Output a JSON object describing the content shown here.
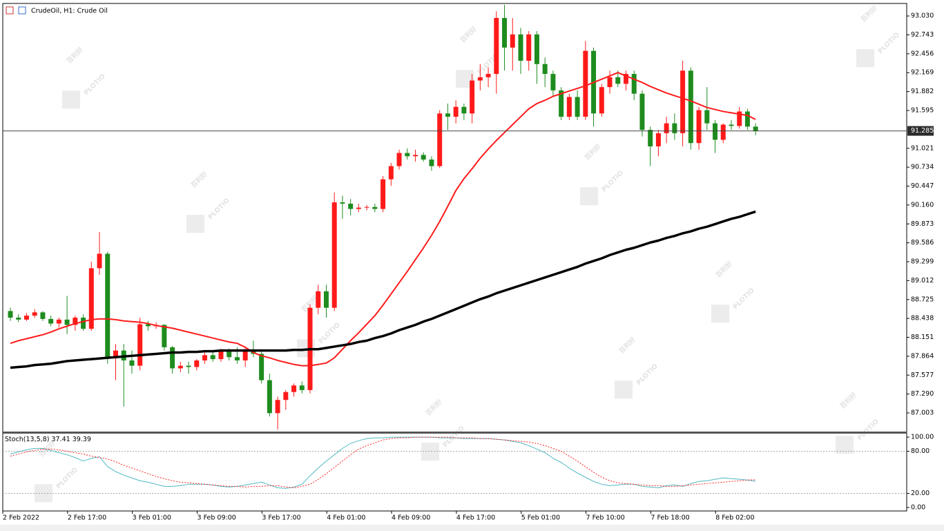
{
  "chart_data": [
    {
      "type": "candlestick",
      "title": "CrudeOil, H1:  Crude Oil",
      "categories": [
        "2 Feb 2022",
        null,
        null,
        null,
        null,
        null,
        null,
        null,
        "2 Feb 17:00",
        null,
        null,
        null,
        null,
        null,
        null,
        null,
        "3 Feb 01:00",
        null,
        null,
        null,
        null,
        null,
        null,
        null,
        "3 Feb 09:00",
        null,
        null,
        null,
        null,
        null,
        null,
        null,
        "3 Feb 17:00",
        null,
        null,
        null,
        null,
        null,
        null,
        null,
        "4 Feb 01:00",
        null,
        null,
        null,
        null,
        null,
        null,
        null,
        "4 Feb 09:00",
        null,
        null,
        null,
        null,
        null,
        null,
        null,
        "4 Feb 17:00",
        null,
        null,
        null,
        null,
        null,
        null,
        null,
        "5 Feb 01:00",
        null,
        null,
        null,
        null,
        null,
        null,
        null,
        "7 Feb 10:00",
        null,
        null,
        null,
        null,
        null,
        null,
        null,
        "7 Feb 18:00",
        null,
        null,
        null,
        null,
        null,
        null,
        null,
        "8 Feb 02:00",
        null,
        null,
        null,
        null
      ],
      "open": [
        88.55,
        88.45,
        88.42,
        88.48,
        88.53,
        88.43,
        88.36,
        88.42,
        88.34,
        88.45,
        88.28,
        89.2,
        89.42,
        87.85,
        87.95,
        87.8,
        87.72,
        88.35,
        88.32,
        88.34,
        88.0,
        87.68,
        87.72,
        87.7,
        87.8,
        87.88,
        87.82,
        87.95,
        87.85,
        87.8,
        87.95,
        87.9,
        87.5,
        87.0,
        87.2,
        87.32,
        87.42,
        87.35,
        88.6,
        88.85,
        88.6,
        90.2,
        90.18,
        90.1,
        90.12,
        90.13,
        90.1,
        90.55,
        90.75,
        90.95,
        90.9,
        90.92,
        90.85,
        90.75,
        91.55,
        91.5,
        91.65,
        91.55,
        92.05,
        92.1,
        92.15,
        93.0,
        92.55,
        92.75,
        92.35,
        92.75,
        92.3,
        92.15,
        91.9,
        91.5,
        91.8,
        91.5,
        92.5,
        91.55,
        91.95,
        92.1,
        92.0,
        92.15,
        91.85,
        91.3,
        91.05,
        91.25,
        91.4,
        91.25,
        92.2,
        91.1,
        91.6,
        91.4,
        91.15,
        91.38,
        91.36,
        91.58,
        91.35
      ],
      "high": [
        88.6,
        88.5,
        88.52,
        88.58,
        88.55,
        88.48,
        88.45,
        88.78,
        88.48,
        88.5,
        89.3,
        89.75,
        89.45,
        88.05,
        88.05,
        87.95,
        88.45,
        88.4,
        88.38,
        88.35,
        88.02,
        87.78,
        87.78,
        87.82,
        87.92,
        87.95,
        87.98,
        87.98,
        88.0,
        88.0,
        88.1,
        87.95,
        87.6,
        87.25,
        87.35,
        87.45,
        87.48,
        88.65,
        88.95,
        88.95,
        90.35,
        90.3,
        90.25,
        90.18,
        90.16,
        90.18,
        90.6,
        90.8,
        91.0,
        91.02,
        91.0,
        90.96,
        90.9,
        91.6,
        91.7,
        91.75,
        91.7,
        92.15,
        92.3,
        92.25,
        93.1,
        93.2,
        93.0,
        92.85,
        92.8,
        92.8,
        92.4,
        92.2,
        91.95,
        91.85,
        91.9,
        92.65,
        92.55,
        92.0,
        92.2,
        92.2,
        92.2,
        92.2,
        91.9,
        91.35,
        91.3,
        91.5,
        91.55,
        92.35,
        92.25,
        91.65,
        91.95,
        91.45,
        91.4,
        91.45,
        91.65,
        91.62,
        91.4
      ],
      "low": [
        88.4,
        88.38,
        88.4,
        88.45,
        88.4,
        88.32,
        88.3,
        88.2,
        88.25,
        88.25,
        88.25,
        89.1,
        87.75,
        87.5,
        87.1,
        87.6,
        87.65,
        88.25,
        88.28,
        87.95,
        87.6,
        87.62,
        87.6,
        87.65,
        87.75,
        87.78,
        87.78,
        87.8,
        87.75,
        87.7,
        87.85,
        87.45,
        86.95,
        86.75,
        87.05,
        87.25,
        87.3,
        87.3,
        88.5,
        88.45,
        88.55,
        89.95,
        90.0,
        90.05,
        90.08,
        90.05,
        90.05,
        90.45,
        90.7,
        90.85,
        90.82,
        90.82,
        90.68,
        90.72,
        91.3,
        91.4,
        91.45,
        91.4,
        91.9,
        91.95,
        91.85,
        92.2,
        92.2,
        92.15,
        92.2,
        92.0,
        91.95,
        91.8,
        91.45,
        91.45,
        91.45,
        91.45,
        91.35,
        91.5,
        91.85,
        91.95,
        91.9,
        91.75,
        91.2,
        90.75,
        90.9,
        91.1,
        91.15,
        91.05,
        91.0,
        91.0,
        91.3,
        90.95,
        91.1,
        91.3,
        91.32,
        91.3,
        91.22
      ],
      "close": [
        88.45,
        88.42,
        88.48,
        88.53,
        88.43,
        88.36,
        88.42,
        88.34,
        88.45,
        88.28,
        89.2,
        89.42,
        87.85,
        87.95,
        87.8,
        87.72,
        88.35,
        88.32,
        88.34,
        88.0,
        87.68,
        87.72,
        87.7,
        87.8,
        87.88,
        87.82,
        87.95,
        87.85,
        87.8,
        87.95,
        87.9,
        87.5,
        87.0,
        87.2,
        87.32,
        87.42,
        87.35,
        88.6,
        88.85,
        88.6,
        90.2,
        90.18,
        90.1,
        90.12,
        90.13,
        90.1,
        90.55,
        90.75,
        90.95,
        90.9,
        90.92,
        90.85,
        90.75,
        91.55,
        91.5,
        91.65,
        91.55,
        92.05,
        92.1,
        92.15,
        93.0,
        92.55,
        92.75,
        92.35,
        92.75,
        92.3,
        92.15,
        91.9,
        91.5,
        91.8,
        91.5,
        92.5,
        91.55,
        91.95,
        92.1,
        92.0,
        92.15,
        91.85,
        91.3,
        91.05,
        91.25,
        91.4,
        91.25,
        92.2,
        91.1,
        91.6,
        91.4,
        91.15,
        91.38,
        91.36,
        91.58,
        91.35,
        91.28
      ],
      "up_color": "#ff1a1a",
      "down_color": "#1e8c1e",
      "series": [
        {
          "color": "#ff1a1a",
          "width": 2,
          "values": [
            88.06,
            88.1,
            88.13,
            88.16,
            88.19,
            88.23,
            88.28,
            88.32,
            88.36,
            88.39,
            88.42,
            88.43,
            88.43,
            88.42,
            88.4,
            88.39,
            88.38,
            88.36,
            88.33,
            88.31,
            88.29,
            88.26,
            88.23,
            88.2,
            88.17,
            88.14,
            88.11,
            88.08,
            88.06,
            88.0,
            87.92,
            87.87,
            87.84,
            87.8,
            87.77,
            87.74,
            87.72,
            87.72,
            87.74,
            87.76,
            87.84,
            87.97,
            88.1,
            88.22,
            88.35,
            88.48,
            88.64,
            88.81,
            88.98,
            89.15,
            89.33,
            89.51,
            89.7,
            89.91,
            90.14,
            90.38,
            90.56,
            90.71,
            90.87,
            91.01,
            91.14,
            91.26,
            91.38,
            91.5,
            91.62,
            91.7,
            91.75,
            91.81,
            91.85,
            91.89,
            91.93,
            91.97,
            92.02,
            92.07,
            92.12,
            92.17,
            92.12,
            92.07,
            92.02,
            91.96,
            91.91,
            91.86,
            91.82,
            91.78,
            91.74,
            91.69,
            91.64,
            91.61,
            91.58,
            91.56,
            91.54,
            91.52,
            91.46
          ]
        },
        {
          "color": "#000000",
          "width": 3.5,
          "values": [
            87.69,
            87.7,
            87.71,
            87.73,
            87.74,
            87.75,
            87.77,
            87.79,
            87.8,
            87.81,
            87.82,
            87.83,
            87.84,
            87.85,
            87.86,
            87.87,
            87.88,
            87.89,
            87.9,
            87.91,
            87.92,
            87.92,
            87.93,
            87.93,
            87.94,
            87.94,
            87.95,
            87.95,
            87.95,
            87.95,
            87.95,
            87.95,
            87.95,
            87.95,
            87.95,
            87.96,
            87.96,
            87.97,
            87.97,
            87.99,
            88.01,
            88.03,
            88.05,
            88.08,
            88.1,
            88.14,
            88.17,
            88.21,
            88.26,
            88.3,
            88.34,
            88.39,
            88.43,
            88.48,
            88.53,
            88.58,
            88.63,
            88.68,
            88.73,
            88.77,
            88.82,
            88.86,
            88.9,
            88.94,
            88.98,
            89.02,
            89.06,
            89.1,
            89.14,
            89.18,
            89.22,
            89.27,
            89.31,
            89.35,
            89.4,
            89.44,
            89.48,
            89.51,
            89.55,
            89.59,
            89.62,
            89.66,
            89.69,
            89.73,
            89.76,
            89.8,
            89.83,
            89.87,
            89.91,
            89.95,
            89.98,
            90.02,
            90.06
          ]
        }
      ],
      "current_price": 91.285,
      "ylim": [
        86.72,
        93.22
      ],
      "yticks": [
        {
          "value": 93.03,
          "label": "93.030"
        },
        92.743,
        92.456,
        92.169,
        91.882,
        91.595,
        91.021,
        90.734,
        90.447,
        {
          "value": 90.16,
          "label": "90.160"
        },
        89.873,
        89.586,
        89.299,
        89.012,
        88.725,
        88.438,
        88.151,
        87.864,
        87.577,
        {
          "value": 87.29,
          "label": "87.290"
        },
        87.003
      ]
    },
    {
      "type": "line",
      "title": "Stoch(13,5,8)",
      "series": [
        {
          "color": "#4fb8c4",
          "dash": false,
          "values": [
            76,
            79,
            82,
            84,
            84,
            81,
            78,
            75,
            71,
            66,
            70,
            72,
            58,
            51,
            46,
            42,
            38,
            36,
            33,
            30,
            30,
            31,
            33,
            33,
            33,
            32,
            30,
            29,
            30,
            32,
            34,
            36,
            32,
            28,
            27,
            29,
            33,
            45,
            56,
            66,
            75,
            84,
            91,
            95,
            98,
            99,
            99,
            100,
            100,
            100,
            100,
            100,
            100,
            99,
            99,
            99,
            98,
            98,
            98,
            98,
            97,
            96,
            94,
            92,
            88,
            83,
            78,
            70,
            64,
            56,
            49,
            43,
            37,
            33,
            31,
            32,
            33,
            33,
            30,
            29,
            28,
            31,
            32,
            30,
            34,
            37,
            38,
            40,
            42,
            41,
            40,
            39,
            37.41
          ]
        },
        {
          "color": "#ff2020",
          "dash": true,
          "values": [
            73,
            76,
            79,
            81,
            83,
            83,
            82,
            80,
            78,
            76,
            73,
            71,
            69,
            65,
            60,
            56,
            52,
            48,
            44,
            41,
            38,
            36,
            35,
            34,
            33,
            32,
            31,
            30,
            30,
            29,
            30,
            30,
            31,
            31,
            29,
            28,
            30,
            33,
            40,
            48,
            57,
            66,
            75,
            83,
            88,
            92,
            96,
            98,
            99,
            99,
            100,
            100,
            100,
            100,
            100,
            99,
            99,
            99,
            98,
            98,
            97,
            96,
            95,
            94,
            93,
            91,
            88,
            84,
            80,
            73,
            66,
            58,
            50,
            43,
            38,
            35,
            34,
            33,
            32,
            31,
            31,
            30,
            30,
            31,
            32,
            33,
            34,
            35,
            36,
            37,
            38,
            39,
            39.39
          ]
        }
      ],
      "levels": [
        20,
        80
      ],
      "ylim": [
        -5,
        105
      ],
      "yticks": [
        {
          "value": 100,
          "label": "100.00"
        },
        {
          "value": 80,
          "label": "80.00"
        },
        {
          "value": 20,
          "label": "20.00"
        },
        {
          "value": 0,
          "label": "0.00"
        }
      ]
    }
  ],
  "watermark": {
    "brand": "PLOTIO",
    "cn": "百利好"
  }
}
